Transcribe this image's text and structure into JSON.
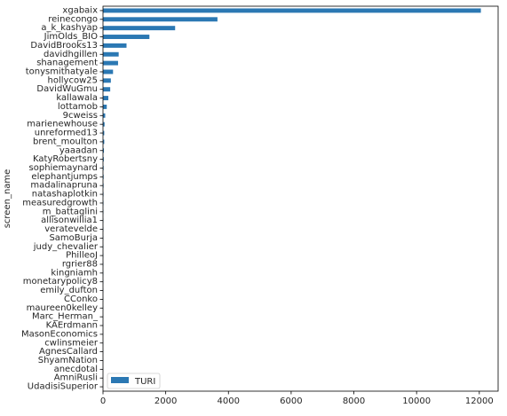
{
  "chart_data": {
    "type": "bar",
    "orientation": "horizontal",
    "title": "",
    "xlabel": "",
    "ylabel": "screen_name",
    "xlim": [
      0,
      12600
    ],
    "xticks": [
      0,
      2000,
      4000,
      6000,
      8000,
      10000,
      12000
    ],
    "grid": false,
    "legend": {
      "position": "lower-left",
      "entries": [
        "TURI"
      ]
    },
    "colors": {
      "bar": "#2b78b3",
      "axis": "#000000",
      "text": "#262626"
    },
    "categories": [
      "xgabaix",
      "reinecongo",
      "a_k_kashyap",
      "JimOlds_BIO",
      "DavidBrooks13",
      "davidhgillen",
      "shanagement",
      "tonysmithatyale",
      "hollycow25",
      "DavidWuGmu",
      "kallawala",
      "lottamob",
      "9cweiss",
      "marienewhouse",
      "unreformed13",
      "brent_moulton",
      "yaaadan",
      "KatyRobertsny",
      "sophiemaynard",
      "elephantjumps",
      "madalinapruna",
      "natashaplotkin",
      "measuredgrowth",
      "m_battaglini",
      "allisonwillia1",
      "veratevelde",
      "SamoBurja",
      "judy_chevalier",
      "PhilleoJ",
      "rgrier88",
      "kingniamh",
      "monetarypolicy8",
      "emily_dufton",
      "CConko",
      "maureen0kelley",
      "Marc_Herman_",
      "KAErdmann",
      "MasonEconomics",
      "cwlinsmeier",
      "AgnesCallard",
      "ShyamNation",
      "anecdotal",
      "AmniRusli",
      "UdadisiSuperior"
    ],
    "series": [
      {
        "name": "TURI",
        "values": [
          12050,
          3650,
          2300,
          1480,
          750,
          500,
          480,
          320,
          250,
          230,
          170,
          120,
          70,
          50,
          40,
          40,
          30,
          25,
          20,
          20,
          18,
          16,
          15,
          14,
          12,
          12,
          10,
          10,
          9,
          8,
          8,
          7,
          7,
          6,
          6,
          5,
          5,
          4,
          4,
          3,
          3,
          3,
          2,
          2
        ]
      }
    ]
  }
}
